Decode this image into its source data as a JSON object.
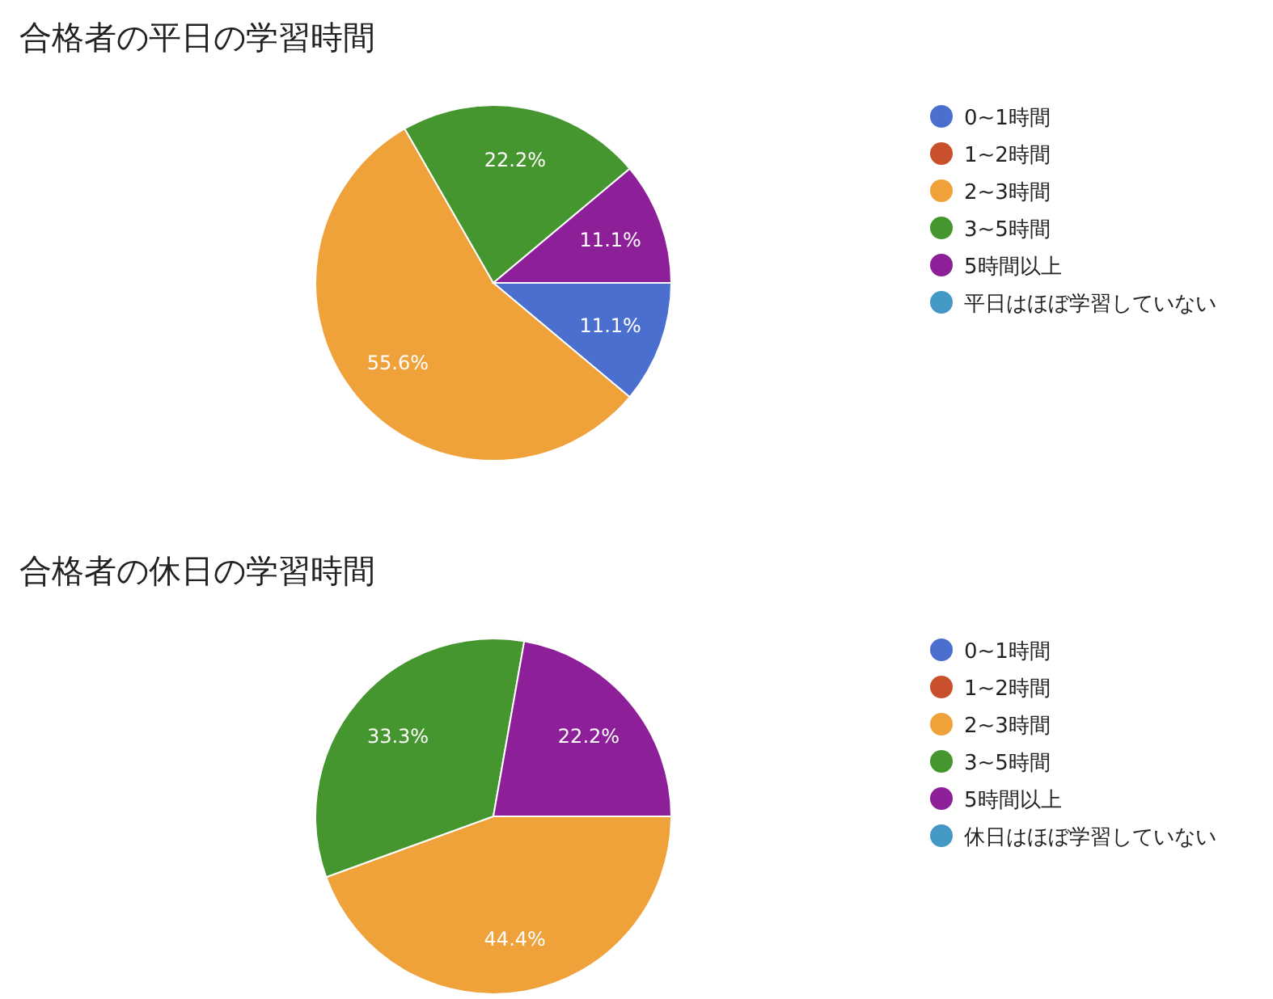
{
  "chart_data": [
    {
      "type": "pie",
      "title": "合格者の平日の学習時間",
      "categories": [
        "0~1時間",
        "1~2時間",
        "2~3時間",
        "3~5時間",
        "5時間以上",
        "平日はほぼ学習していない"
      ],
      "values": [
        11.1,
        0,
        55.6,
        22.2,
        11.1,
        0
      ],
      "value_labels": [
        "11.1%",
        null,
        "55.6%",
        "22.2%",
        "11.1%",
        null
      ],
      "colors": [
        "#4a6fcf",
        "#c9502c",
        "#efa13a",
        "#46962f",
        "#8d1f98",
        "#4499c4"
      ],
      "legend": "right"
    },
    {
      "type": "pie",
      "title": "合格者の休日の学習時間",
      "categories": [
        "0~1時間",
        "1~2時間",
        "2~3時間",
        "3~5時間",
        "5時間以上",
        "休日はほぼ学習していない"
      ],
      "values": [
        0,
        0,
        44.4,
        33.3,
        22.2,
        0
      ],
      "value_labels": [
        null,
        null,
        "44.4%",
        "33.3%",
        "22.2%",
        null
      ],
      "colors": [
        "#4a6fcf",
        "#c9502c",
        "#efa13a",
        "#46962f",
        "#8d1f98",
        "#4499c4"
      ],
      "legend": "right"
    }
  ]
}
